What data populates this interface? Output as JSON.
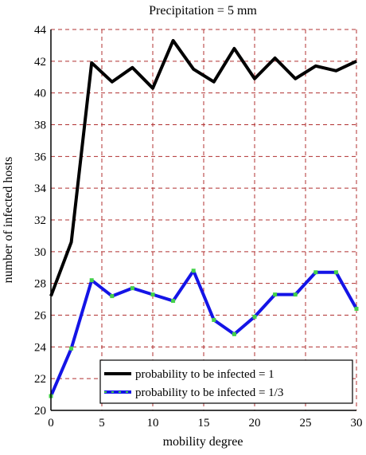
{
  "chart_data": {
    "type": "line",
    "title": "Precipitation = 5 mm",
    "xlabel": "mobility degree",
    "ylabel": "number of infected hosts",
    "xlim": [
      0,
      30
    ],
    "ylim": [
      20,
      44
    ],
    "xticks": [
      0,
      5,
      10,
      15,
      20,
      25,
      30
    ],
    "yticks": [
      20,
      22,
      24,
      26,
      28,
      30,
      32,
      34,
      36,
      38,
      40,
      42,
      44
    ],
    "grid": true,
    "legend_position": "bottom-right",
    "series": [
      {
        "name": "probability to be infected = 1",
        "color": "#000000",
        "marker_color": "",
        "x": [
          0,
          2,
          4,
          6,
          8,
          10,
          12,
          14,
          16,
          18,
          20,
          22,
          24,
          26,
          28,
          30
        ],
        "y": [
          27.2,
          30.6,
          41.9,
          40.7,
          41.6,
          40.3,
          43.3,
          41.5,
          40.7,
          42.8,
          40.9,
          42.2,
          40.9,
          41.7,
          41.4,
          42.0
        ]
      },
      {
        "name": "probability to be infected = 1/3",
        "color": "#1414e6",
        "marker_color": "#44d24a",
        "x": [
          0,
          2,
          4,
          6,
          8,
          10,
          12,
          14,
          16,
          18,
          20,
          22,
          24,
          26,
          28,
          30
        ],
        "y": [
          20.9,
          23.9,
          28.2,
          27.2,
          27.7,
          27.3,
          26.9,
          28.8,
          25.7,
          24.8,
          25.9,
          27.3,
          27.3,
          28.7,
          28.7,
          26.4
        ]
      }
    ]
  }
}
